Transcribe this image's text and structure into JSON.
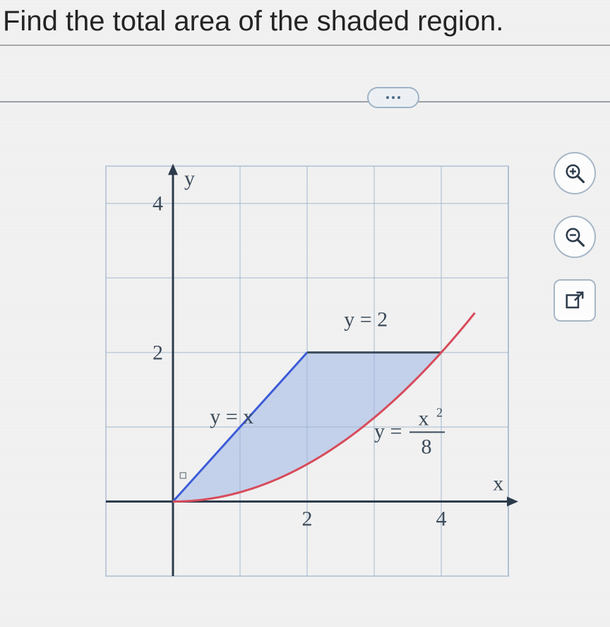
{
  "prompt_text": "Find the total area of the shaded region.",
  "icons": {
    "zoom_in": "zoom-in-icon",
    "zoom_out": "zoom-out-icon",
    "popout": "popout-icon"
  },
  "chart": {
    "type": "area-between-curves",
    "background_color": "#f7f7f7",
    "grid_color": "#9cb4cc",
    "axis_color": "#2b3a4a",
    "label_color": "#3a4a5a",
    "label_fontsize": 30,
    "axis_label_fontsize": 30,
    "title_fontsize": 16,
    "xlim": [
      -1,
      5
    ],
    "ylim": [
      -1,
      4.5
    ],
    "xticks": [
      2,
      4
    ],
    "yticks": [
      2,
      4
    ],
    "x_axis_label": "x",
    "y_axis_label": "y",
    "curves": [
      {
        "name": "y_eq_x",
        "label": "y = x",
        "color": "#3a5bd9",
        "width": 3,
        "segment": {
          "x0": 0,
          "y0": 0,
          "x1": 2,
          "y1": 2
        },
        "label_pos": {
          "x": 0.55,
          "y": 1.05
        }
      },
      {
        "name": "y_eq_2",
        "label": "y = 2",
        "color": "#3a4a5a",
        "width": 3,
        "segment": {
          "x0": 2,
          "y0": 2,
          "x1": 4,
          "y1": 2
        },
        "label_pos": {
          "x": 2.55,
          "y": 2.35
        }
      },
      {
        "name": "y_eq_x2_over_8",
        "label_prefix": "y =",
        "label_numer": "x",
        "label_numer_sup": "2",
        "label_denom": "8",
        "color": "#d94a5a",
        "width": 3,
        "quadratic_coeff": 0.125,
        "domain": {
          "x0": 0,
          "x1": 4.5
        },
        "label_pos": {
          "x": 3.0,
          "y": 0.95
        }
      }
    ],
    "shaded_region": {
      "fill": "#9fb7e6",
      "fill_opacity": 0.55,
      "bounded_by": [
        "y_eq_x",
        "y_eq_2",
        "y_eq_x2_over_8"
      ],
      "x_range": [
        0,
        4
      ]
    }
  }
}
